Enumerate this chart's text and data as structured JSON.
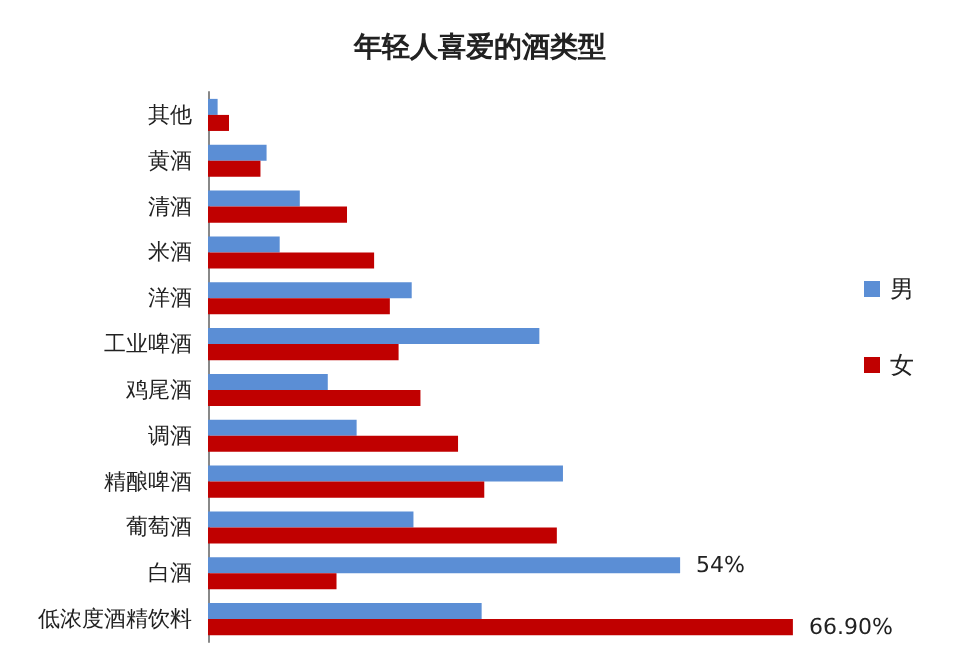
{
  "chart_data": {
    "type": "bar",
    "orientation": "horizontal",
    "title": "年轻人喜爱的酒类型",
    "categories": [
      "其他",
      "黄酒",
      "清酒",
      "米酒",
      "洋酒",
      "工业啤酒",
      "鸡尾酒",
      "调酒",
      "精酿啤酒",
      "葡萄酒",
      "白酒",
      "低浓度酒精饮料"
    ],
    "series": [
      {
        "name": "男",
        "color": "#5b8ed5",
        "values": [
          1.1,
          6.7,
          10.5,
          8.2,
          23.3,
          37.9,
          13.7,
          17.0,
          40.6,
          23.5,
          54,
          31.3
        ],
        "value_labels": [
          null,
          null,
          null,
          null,
          null,
          null,
          null,
          null,
          null,
          null,
          "54%",
          null
        ]
      },
      {
        "name": "女",
        "color": "#c00000",
        "values": [
          2.4,
          6.0,
          15.9,
          19.0,
          20.8,
          21.8,
          24.3,
          28.6,
          31.6,
          39.9,
          14.7,
          66.9
        ],
        "value_labels": [
          null,
          null,
          null,
          null,
          null,
          null,
          null,
          null,
          null,
          null,
          null,
          "66.90%"
        ]
      }
    ],
    "legend": "right",
    "grid": false
  }
}
